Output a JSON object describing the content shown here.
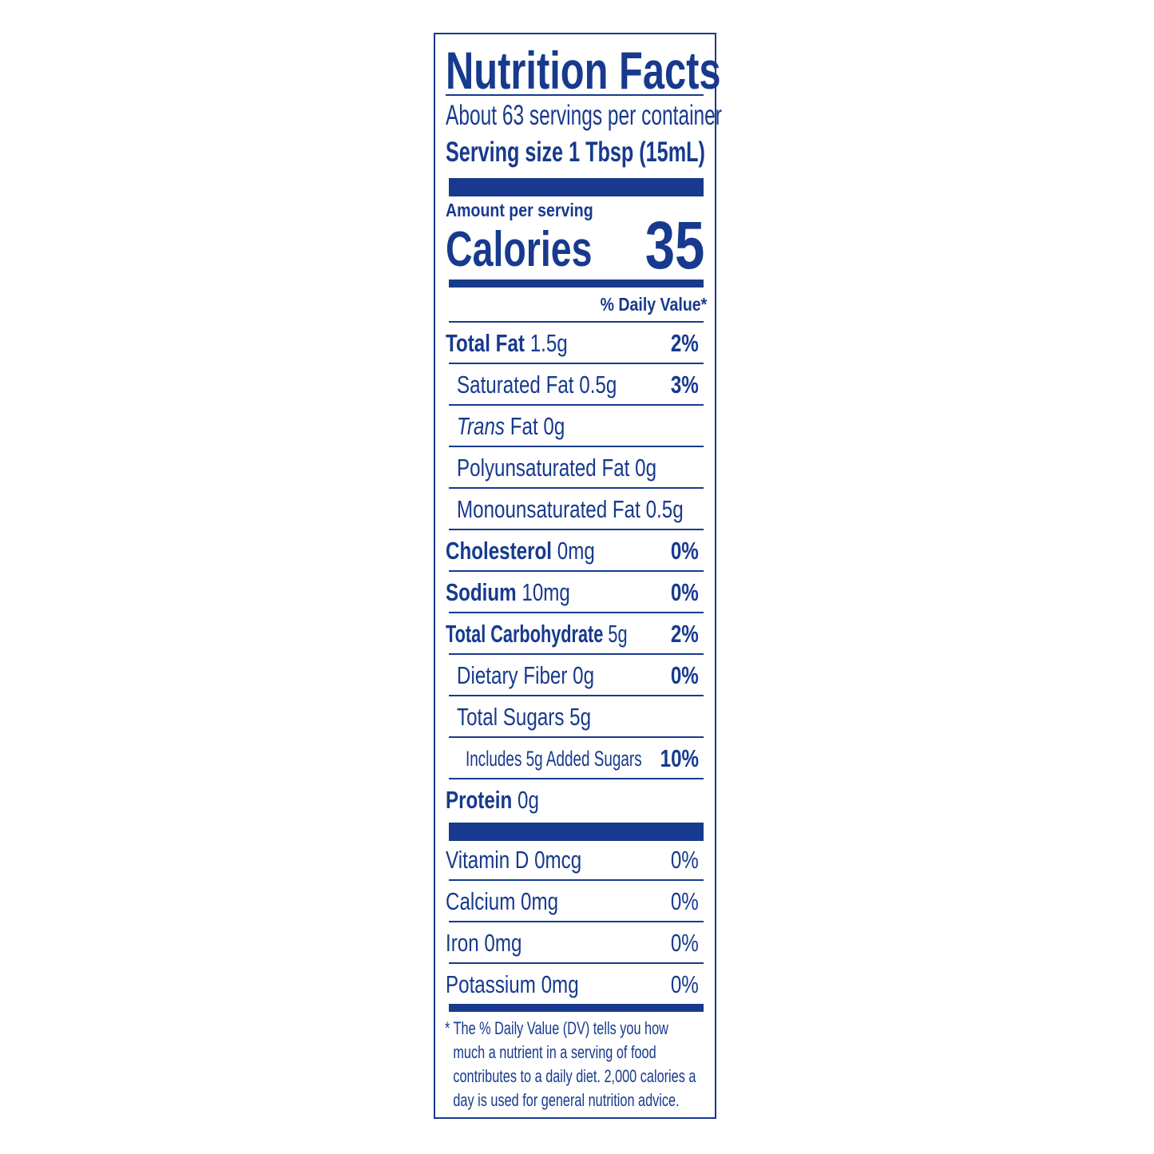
{
  "label": {
    "title": "Nutrition Facts",
    "servings_per_container": "About 63 servings per container",
    "serving_size": "Serving size 1 Tbsp (15mL)",
    "amount_per_serving": "Amount per serving",
    "calories_label": "Calories",
    "calories_value": "35",
    "daily_value_header": "% Daily Value*",
    "nutrients": [
      {
        "name": "Total Fat",
        "amount": "1.5g",
        "dv": "2%"
      },
      {
        "name": "Saturated Fat",
        "amount": "0.5g",
        "dv": "3%"
      },
      {
        "name": "Trans",
        "name_rest": "Fat",
        "amount": "0g",
        "dv": ""
      },
      {
        "name": "Polyunsaturated Fat",
        "amount": "0g",
        "dv": ""
      },
      {
        "name": "Monounsaturated Fat",
        "amount": "0.5g",
        "dv": ""
      },
      {
        "name": "Cholesterol",
        "amount": "0mg",
        "dv": "0%"
      },
      {
        "name": "Sodium",
        "amount": "10mg",
        "dv": "0%"
      },
      {
        "name": "Total Carbohydrate",
        "amount": "5g",
        "dv": "2%"
      },
      {
        "name": "Dietary Fiber",
        "amount": "0g",
        "dv": "0%"
      },
      {
        "name": "Total Sugars",
        "amount": "5g",
        "dv": ""
      },
      {
        "name": "Includes 5g Added Sugars",
        "amount": "",
        "dv": "10%"
      },
      {
        "name": "Protein",
        "amount": "0g",
        "dv": ""
      }
    ],
    "vitamins": [
      {
        "name": "Vitamin D 0mcg",
        "dv": "0%"
      },
      {
        "name": "Calcium 0mg",
        "dv": "0%"
      },
      {
        "name": "Iron 0mg",
        "dv": "0%"
      },
      {
        "name": "Potassium 0mg",
        "dv": "0%"
      }
    ],
    "footnote": "* The % Daily Value (DV) tells you how much a nutrient in a serving of food contributes to a daily diet. 2,000 calories a day is used for general nutrition advice.",
    "color": "#173a8e"
  }
}
